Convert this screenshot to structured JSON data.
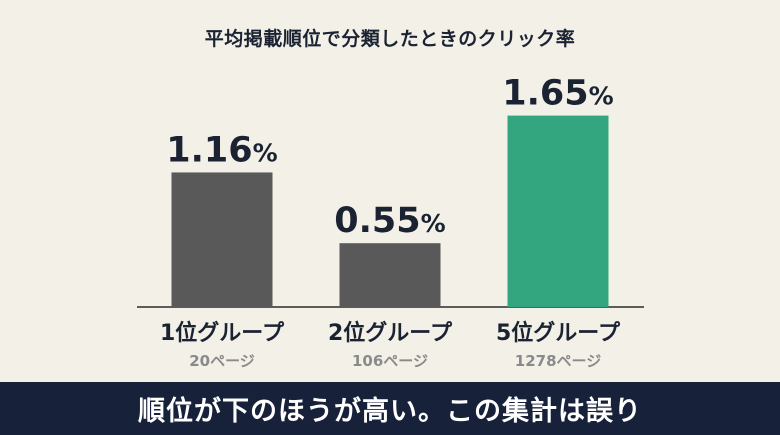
{
  "colors": {
    "background": "#f3f1e7",
    "bar_default": "#595959",
    "bar_highlight": "#33a67f",
    "text_dark": "#1b2333",
    "text_muted": "#8a8a8a",
    "caption_bg": "#18213a",
    "caption_text": "#ffffff"
  },
  "caption": {
    "text": "順位が下のほうが高い。この集計は誤り"
  },
  "chart_data": {
    "type": "bar",
    "title": "平均掲載順位で分類したときのクリック率",
    "categories": [
      "1位グループ",
      "2位グループ",
      "5位グループ"
    ],
    "sublabels": [
      "20ページ",
      "106ページ",
      "1278ページ"
    ],
    "values": [
      1.16,
      0.55,
      1.65
    ],
    "value_labels": [
      "1.16",
      "0.55",
      "1.65"
    ],
    "unit": "%",
    "highlight_index": 2,
    "ylim": [
      0,
      2.0
    ],
    "grid": false,
    "legend": "none",
    "xlabel": "",
    "ylabel": ""
  }
}
